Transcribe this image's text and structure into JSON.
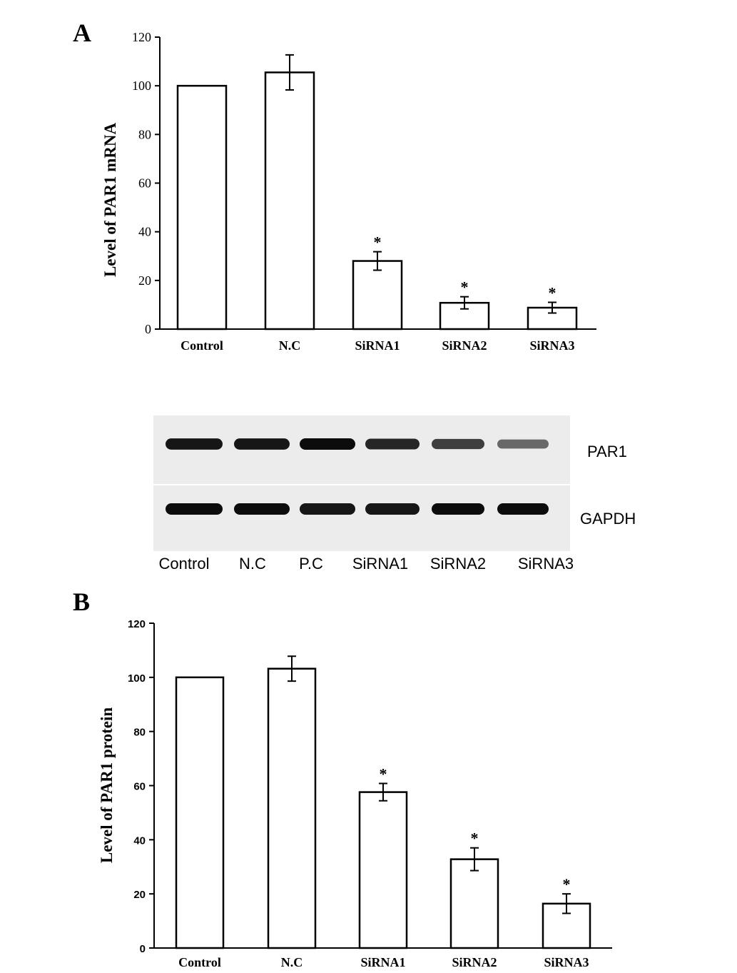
{
  "chart_data": [
    {
      "type": "bar",
      "panel_label": "A",
      "title": "",
      "xlabel": "",
      "ylabel": "Level of PAR1 mRNA",
      "categories": [
        "Control",
        "N.C",
        "SiRNA1",
        "SiRNA2",
        "SiRNA3"
      ],
      "values": [
        100,
        105.5,
        28,
        10.8,
        8.8
      ],
      "errors": [
        0,
        7.2,
        3.8,
        2.5,
        2.2
      ],
      "significance": [
        "",
        "",
        "*",
        "*",
        "*"
      ],
      "ylim": [
        0,
        120
      ],
      "yticks": [
        "0",
        "20",
        "40",
        "60",
        "80",
        "100",
        "120"
      ],
      "grid": false,
      "bar_fill": "#ffffff",
      "bar_stroke": "#000000"
    },
    {
      "type": "bar",
      "panel_label": "B",
      "title": "",
      "xlabel": "",
      "ylabel": "Level of PAR1 protein",
      "categories": [
        "Control",
        "N.C",
        "SiRNA1",
        "SiRNA2",
        "SiRNA3"
      ],
      "values": [
        100,
        103.2,
        57.6,
        32.8,
        16.4
      ],
      "errors": [
        0,
        4.6,
        3.2,
        4.2,
        3.6
      ],
      "significance": [
        "",
        "",
        "*",
        "*",
        "*"
      ],
      "ylim": [
        0,
        120
      ],
      "yticks": [
        "0",
        "20",
        "40",
        "60",
        "80",
        "100",
        "120"
      ],
      "grid": false,
      "bar_fill": "#ffffff",
      "bar_stroke": "#000000"
    }
  ],
  "western_blot": {
    "rows": [
      {
        "label": "PAR1",
        "intensities": [
          0.95,
          0.95,
          1.0,
          0.85,
          0.7,
          0.45
        ]
      },
      {
        "label": "GAPDH",
        "intensities": [
          1.0,
          1.0,
          0.95,
          0.95,
          1.0,
          1.0
        ]
      }
    ],
    "lane_labels": [
      "Control",
      "N.C",
      "P.C",
      "SiRNA1",
      "SiRNA2",
      "SiRNA3"
    ],
    "background_color": "#ececec"
  }
}
